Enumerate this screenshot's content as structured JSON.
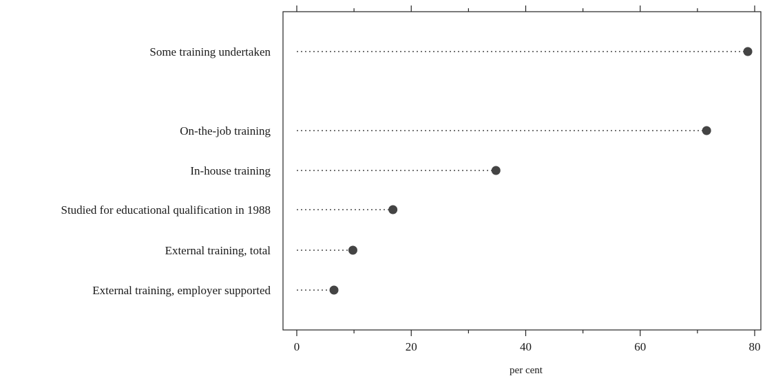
{
  "chart_data": {
    "type": "dot",
    "xlabel": "per cent",
    "ylabel": "",
    "title": "",
    "xlim": [
      0,
      80
    ],
    "x_ticks": [
      0,
      20,
      40,
      60,
      80
    ],
    "grid": false,
    "categories": [
      "Some training undertaken",
      "On-the-job training",
      "In-house training",
      "Studied for educational qualification in 1988",
      "External training, total",
      "External training, employer supported"
    ],
    "values": [
      78.8,
      71.6,
      34.8,
      16.8,
      9.8,
      6.5
    ],
    "colors": {
      "point": "#444444",
      "leader": "#222222",
      "frame": "#222222"
    }
  }
}
